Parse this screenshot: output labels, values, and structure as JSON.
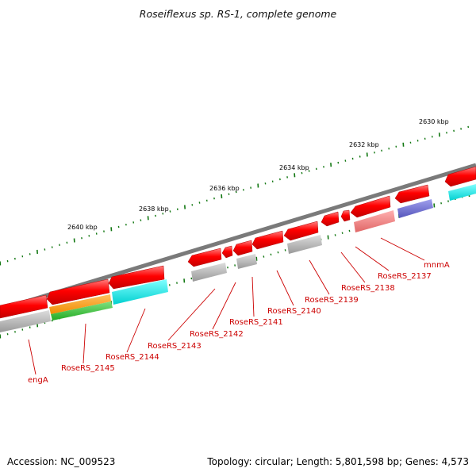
{
  "title": "Roseiflexus sp. RS-1, complete genome",
  "footer": {
    "accession": "Accession: NC_009523",
    "topology": "Topology: circular; Length: 5,801,598 bp; Genes: 4,573"
  },
  "scale_labels": [
    "2630 kbp",
    "2632 kbp",
    "2634 kbp",
    "2636 kbp",
    "2638 kbp",
    "2640 kbp"
  ],
  "gene_labels": [
    "mnmA",
    "RoseRS_2137",
    "RoseRS_2138",
    "RoseRS_2139",
    "RoseRS_2140",
    "RoseRS_2141",
    "RoseRS_2142",
    "RoseRS_2143",
    "RoseRS_2144",
    "RoseRS_2145",
    "engA"
  ],
  "colors": {
    "gene": "#ff0000",
    "cds_grey": "#aaaaaa",
    "cds_cyan": "#00e6e6",
    "cds_orange": "#ff9900",
    "cds_green": "#33cc33",
    "cds_purple": "#6666cc",
    "cds_pink": "#f08080",
    "backbone": "#777777",
    "tick": "#117711",
    "label": "#cc0000"
  }
}
